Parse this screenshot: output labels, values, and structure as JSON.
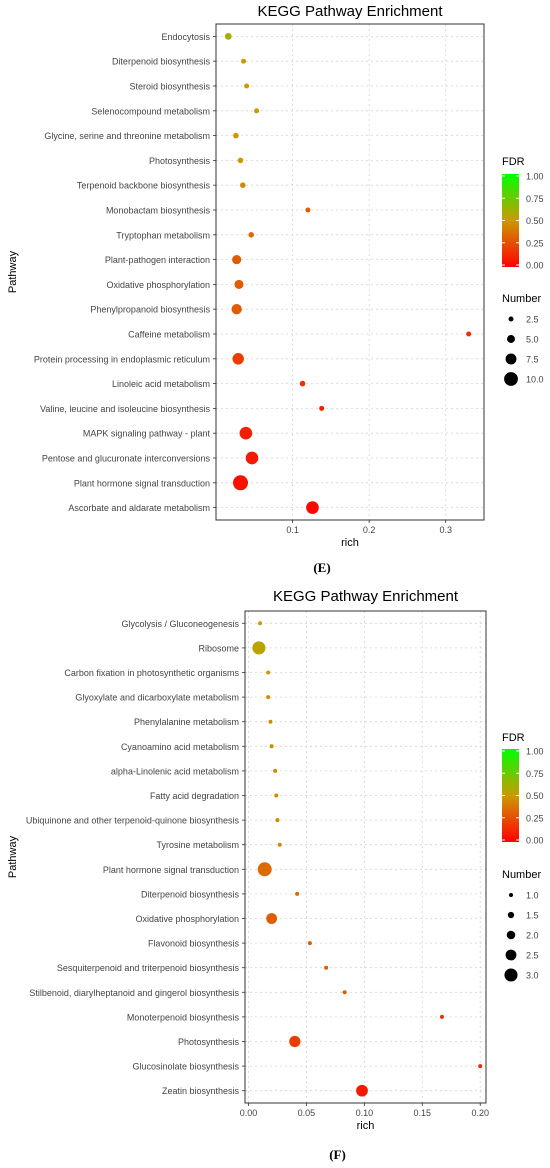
{
  "legend_titles": {
    "color": "FDR",
    "size": "Number"
  },
  "colors": {
    "fdr_low": "#ff0000",
    "fdr_mid": "#cc9900",
    "fdr_high": "#00ff00",
    "grid": "#d9d9d9",
    "panel_border": "#333333"
  },
  "chart_data": [
    {
      "type": "scatter",
      "title": "KEGG Pathway Enrichment",
      "caption": "(E)",
      "xlabel": "rich",
      "ylabel": "Pathway",
      "xlim": [
        0,
        0.35
      ],
      "xticks": [
        0.1,
        0.2,
        0.3
      ],
      "xtick_labels": [
        "0.1",
        "0.2",
        "0.3"
      ],
      "color_legend": {
        "ticks": [
          "1.00",
          "0.75",
          "0.50",
          "0.25",
          "0.00"
        ],
        "range": [
          0,
          1
        ]
      },
      "size_legend": {
        "labels": [
          "2.5",
          "5.0",
          "7.5",
          "10.0"
        ],
        "values": [
          2.5,
          5.0,
          7.5,
          10.0
        ],
        "max": 11
      },
      "grid": true,
      "legend_position": "right",
      "points": [
        {
          "pathway": "Endocytosis",
          "rich": 0.016,
          "fdr": 0.6,
          "number": 4
        },
        {
          "pathway": "Diterpenoid biosynthesis",
          "rich": 0.036,
          "fdr": 0.5,
          "number": 1
        },
        {
          "pathway": "Steroid biosynthesis",
          "rich": 0.04,
          "fdr": 0.5,
          "number": 1
        },
        {
          "pathway": "Selenocompound metabolism",
          "rich": 0.053,
          "fdr": 0.5,
          "number": 1
        },
        {
          "pathway": "Glycine, serine and threonine metabolism",
          "rich": 0.026,
          "fdr": 0.5,
          "number": 3
        },
        {
          "pathway": "Photosynthesis",
          "rich": 0.032,
          "fdr": 0.5,
          "number": 3
        },
        {
          "pathway": "Terpenoid backbone biosynthesis",
          "rich": 0.035,
          "fdr": 0.45,
          "number": 3
        },
        {
          "pathway": "Monobactam biosynthesis",
          "rich": 0.12,
          "fdr": 0.3,
          "number": 1
        },
        {
          "pathway": "Tryptophan metabolism",
          "rich": 0.046,
          "fdr": 0.35,
          "number": 3
        },
        {
          "pathway": "Plant-pathogen interaction",
          "rich": 0.027,
          "fdr": 0.3,
          "number": 6
        },
        {
          "pathway": "Oxidative phosphorylation",
          "rich": 0.03,
          "fdr": 0.3,
          "number": 6
        },
        {
          "pathway": "Phenylpropanoid biosynthesis",
          "rich": 0.027,
          "fdr": 0.3,
          "number": 7
        },
        {
          "pathway": "Caffeine metabolism",
          "rich": 0.33,
          "fdr": 0.15,
          "number": 1
        },
        {
          "pathway": "Protein processing in endoplasmic reticulum",
          "rich": 0.029,
          "fdr": 0.2,
          "number": 8
        },
        {
          "pathway": "Linoleic acid metabolism",
          "rich": 0.113,
          "fdr": 0.15,
          "number": 3
        },
        {
          "pathway": "Valine, leucine and isoleucine biosynthesis",
          "rich": 0.138,
          "fdr": 0.1,
          "number": 2
        },
        {
          "pathway": "MAPK signaling pathway - plant",
          "rich": 0.039,
          "fdr": 0.1,
          "number": 9
        },
        {
          "pathway": "Pentose and glucuronate interconversions",
          "rich": 0.047,
          "fdr": 0.08,
          "number": 9
        },
        {
          "pathway": "Plant hormone signal transduction",
          "rich": 0.032,
          "fdr": 0.05,
          "number": 11
        },
        {
          "pathway": "Ascorbate and aldarate metabolism",
          "rich": 0.126,
          "fdr": 0.02,
          "number": 9
        }
      ]
    },
    {
      "type": "scatter",
      "title": "KEGG Pathway Enrichment",
      "caption": "(F)",
      "xlabel": "rich",
      "ylabel": "Pathway",
      "xlim": [
        -0.003,
        0.205
      ],
      "xticks": [
        0.0,
        0.05,
        0.1,
        0.15,
        0.2
      ],
      "xtick_labels": [
        "0.00",
        "0.05",
        "0.10",
        "0.15",
        "0.20"
      ],
      "color_legend": {
        "ticks": [
          "1.00",
          "0.75",
          "0.50",
          "0.25",
          "0.00"
        ],
        "range": [
          0,
          1
        ]
      },
      "size_legend": {
        "labels": [
          "1.0",
          "1.5",
          "2.0",
          "2.5",
          "3.0"
        ],
        "values": [
          1.0,
          1.5,
          2.0,
          2.5,
          3.0
        ],
        "max": 3.2
      },
      "grid": true,
      "legend_position": "right",
      "points": [
        {
          "pathway": "Glycolysis / Gluconeogenesis",
          "rich": 0.01,
          "fdr": 0.5,
          "number": 1
        },
        {
          "pathway": "Ribosome",
          "rich": 0.009,
          "fdr": 0.55,
          "number": 3
        },
        {
          "pathway": "Carbon fixation in photosynthetic organisms",
          "rich": 0.017,
          "fdr": 0.5,
          "number": 1
        },
        {
          "pathway": "Glyoxylate and dicarboxylate metabolism",
          "rich": 0.017,
          "fdr": 0.45,
          "number": 1
        },
        {
          "pathway": "Phenylalanine metabolism",
          "rich": 0.019,
          "fdr": 0.45,
          "number": 1
        },
        {
          "pathway": "Cyanoamino acid metabolism",
          "rich": 0.02,
          "fdr": 0.45,
          "number": 1
        },
        {
          "pathway": "alpha-Linolenic acid metabolism",
          "rich": 0.023,
          "fdr": 0.45,
          "number": 1
        },
        {
          "pathway": "Fatty acid degradation",
          "rich": 0.024,
          "fdr": 0.45,
          "number": 1
        },
        {
          "pathway": "Ubiquinone and other terpenoid-quinone biosynthesis",
          "rich": 0.025,
          "fdr": 0.45,
          "number": 1
        },
        {
          "pathway": "Tyrosine metabolism",
          "rich": 0.027,
          "fdr": 0.45,
          "number": 1
        },
        {
          "pathway": "Plant hormone signal transduction",
          "rich": 0.014,
          "fdr": 0.35,
          "number": 3.2
        },
        {
          "pathway": "Diterpenoid biosynthesis",
          "rich": 0.042,
          "fdr": 0.35,
          "number": 1
        },
        {
          "pathway": "Oxidative phosphorylation",
          "rich": 0.02,
          "fdr": 0.3,
          "number": 2.5
        },
        {
          "pathway": "Flavonoid biosynthesis",
          "rich": 0.053,
          "fdr": 0.3,
          "number": 1
        },
        {
          "pathway": "Sesquiterpenoid and triterpenoid biosynthesis",
          "rich": 0.067,
          "fdr": 0.3,
          "number": 1
        },
        {
          "pathway": "Stilbenoid, diarylheptanoid and gingerol biosynthesis",
          "rich": 0.083,
          "fdr": 0.3,
          "number": 1
        },
        {
          "pathway": "Monoterpenoid biosynthesis",
          "rich": 0.167,
          "fdr": 0.15,
          "number": 1
        },
        {
          "pathway": "Photosynthesis",
          "rich": 0.04,
          "fdr": 0.2,
          "number": 2.6
        },
        {
          "pathway": "Glucosinolate biosynthesis",
          "rich": 0.2,
          "fdr": 0.12,
          "number": 1
        },
        {
          "pathway": "Zeatin biosynthesis",
          "rich": 0.098,
          "fdr": 0.08,
          "number": 2.7
        }
      ]
    }
  ]
}
